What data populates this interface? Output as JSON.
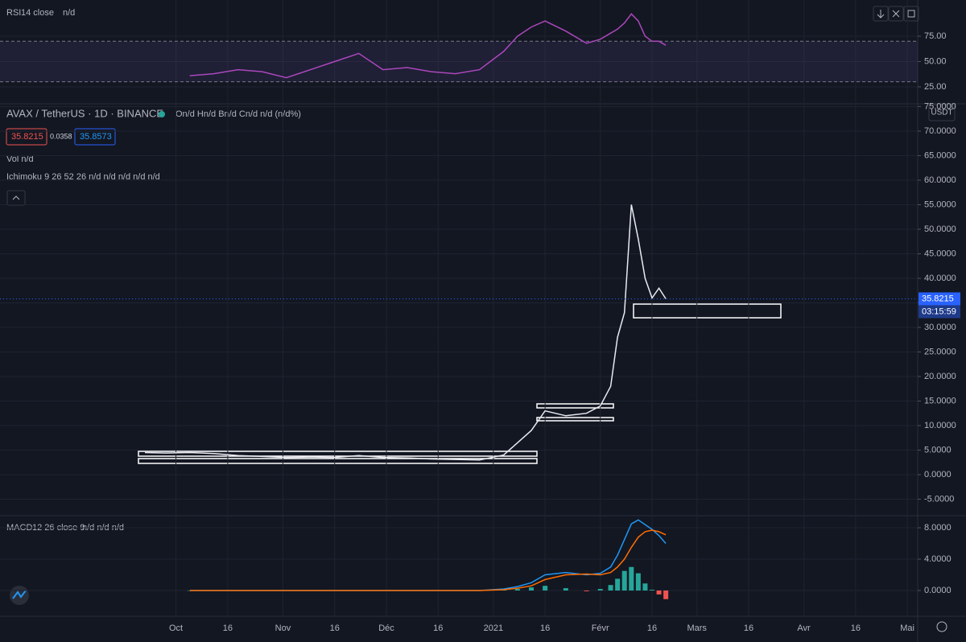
{
  "chart_data": [
    {
      "type": "line",
      "title": "RSI",
      "params": "14 close",
      "status": "n/d",
      "x": [
        "2020-09-22",
        "2020-09-28",
        "2020-10-05",
        "2020-10-12",
        "2020-10-19",
        "2020-10-26",
        "2020-11-02",
        "2020-11-09",
        "2020-11-16",
        "2020-11-23",
        "2020-11-30",
        "2020-12-07",
        "2020-12-14",
        "2020-12-21",
        "2020-12-28",
        "2021-01-04",
        "2021-01-08",
        "2021-01-12",
        "2021-01-16",
        "2021-01-22",
        "2021-01-28",
        "2021-02-01",
        "2021-02-04",
        "2021-02-06",
        "2021-02-08",
        "2021-02-10",
        "2021-02-12",
        "2021-02-14",
        "2021-02-16",
        "2021-02-18",
        "2021-02-20"
      ],
      "series": [
        {
          "color": "#ab47bc",
          "values": [
            null,
            null,
            36,
            38,
            42,
            40,
            34,
            42,
            50,
            58,
            42,
            44,
            40,
            38,
            42,
            60,
            75,
            84,
            90,
            80,
            68,
            72,
            78,
            82,
            88,
            97,
            90,
            75,
            70,
            70,
            66
          ]
        }
      ],
      "band": [
        30,
        70
      ],
      "band_color": "#7e57c2",
      "ylim": [
        9.1,
        110.7
      ],
      "yticks": [
        {
          "value": 25,
          "label": "25.00"
        },
        {
          "value": 50,
          "label": "50.00"
        },
        {
          "value": 75,
          "label": "75.00"
        }
      ]
    },
    {
      "type": "line",
      "title": "AVAX / TetherUS · 1D · BINANCE",
      "ohlc": "On/d Hn/d Bn/d Cn/d n/d (n/d%)",
      "bid": "35.8215",
      "spread": "0.0358",
      "ask": "35.8573",
      "volume_legend": "Vol  n/d",
      "ichimoku_legend": "Ichimoku 9 26 52 26  n/d n/d n/d n/d n/d",
      "currency": "USDT",
      "countdown": "03:15:59",
      "x": [
        "2020-09-22",
        "2020-09-28",
        "2020-10-05",
        "2020-10-12",
        "2020-10-19",
        "2020-10-26",
        "2020-11-02",
        "2020-11-09",
        "2020-11-16",
        "2020-11-23",
        "2020-11-30",
        "2020-12-07",
        "2020-12-14",
        "2020-12-21",
        "2020-12-28",
        "2021-01-04",
        "2021-01-08",
        "2021-01-12",
        "2021-01-16",
        "2021-01-22",
        "2021-01-28",
        "2021-02-01",
        "2021-02-04",
        "2021-02-06",
        "2021-02-08",
        "2021-02-10",
        "2021-02-12",
        "2021-02-14",
        "2021-02-16",
        "2021-02-18",
        "2021-02-20"
      ],
      "series": [
        {
          "color": "#e8eaf0",
          "values": [
            4.5,
            4.4,
            4.5,
            4.3,
            3.9,
            3.7,
            3.5,
            3.6,
            3.5,
            3.9,
            3.5,
            3.4,
            3.2,
            3.1,
            3.0,
            4.0,
            6.5,
            9.0,
            13.0,
            12.0,
            12.5,
            14.0,
            18.0,
            28.0,
            33.0,
            55.0,
            48.0,
            40.0,
            36.0,
            38.0,
            35.8215
          ]
        }
      ],
      "ylim": [
        -8.2,
        75.4
      ],
      "yticks": [
        {
          "value": -5,
          "label": "-5.0000"
        },
        {
          "value": 0,
          "label": "0.0000"
        },
        {
          "value": 5,
          "label": "5.0000"
        },
        {
          "value": 10,
          "label": "10.0000"
        },
        {
          "value": 15,
          "label": "15.0000"
        },
        {
          "value": 20,
          "label": "20.0000"
        },
        {
          "value": 25,
          "label": "25.0000"
        },
        {
          "value": 30,
          "label": "30.0000"
        },
        {
          "value": 35,
          "label": "35.0000"
        },
        {
          "value": 40,
          "label": "40.0000"
        },
        {
          "value": 45,
          "label": "45.0000"
        },
        {
          "value": 50,
          "label": "50.0000"
        },
        {
          "value": 55,
          "label": "55.0000"
        },
        {
          "value": 60,
          "label": "60.0000"
        },
        {
          "value": 65,
          "label": "65.0000"
        },
        {
          "value": 70,
          "label": "70.0000"
        },
        {
          "value": 75,
          "label": "75.0000"
        }
      ]
    },
    {
      "type": "line",
      "title": "MACD",
      "params": "12 26 close 9",
      "status": "n/d n/d n/d",
      "x": [
        "2020-09-22",
        "2020-09-28",
        "2020-10-05",
        "2020-10-12",
        "2020-10-19",
        "2020-10-26",
        "2020-11-02",
        "2020-11-09",
        "2020-11-16",
        "2020-11-23",
        "2020-11-30",
        "2020-12-07",
        "2020-12-14",
        "2020-12-21",
        "2020-12-28",
        "2021-01-04",
        "2021-01-08",
        "2021-01-12",
        "2021-01-16",
        "2021-01-22",
        "2021-01-28",
        "2021-02-01",
        "2021-02-04",
        "2021-02-06",
        "2021-02-08",
        "2021-02-10",
        "2021-02-12",
        "2021-02-14",
        "2021-02-16",
        "2021-02-18",
        "2021-02-20"
      ],
      "series": [
        {
          "color": "#26a69a",
          "negative_color": "#ef5350",
          "style": "histogram",
          "values": [
            null,
            null,
            0,
            0,
            0,
            0,
            0,
            0,
            0,
            0,
            0,
            0,
            0,
            0,
            0,
            0.1,
            0.2,
            0.4,
            0.6,
            0.3,
            -0.1,
            0.2,
            0.7,
            1.5,
            2.5,
            3.0,
            2.2,
            0.9,
            0.1,
            -0.5,
            -1.1
          ]
        },
        {
          "color": "#2196f3",
          "values": [
            null,
            null,
            0,
            0,
            0,
            0,
            0,
            0,
            0,
            0,
            0,
            0,
            0,
            0,
            0,
            0.2,
            0.5,
            1.0,
            2.0,
            2.3,
            2.0,
            2.2,
            3.0,
            4.5,
            6.5,
            8.5,
            9.0,
            8.4,
            7.8,
            7.0,
            6.0
          ]
        },
        {
          "color": "#ff6d00",
          "values": [
            null,
            null,
            0,
            0,
            0,
            0,
            0,
            0,
            0,
            0,
            0,
            0,
            0,
            0,
            0,
            0.1,
            0.3,
            0.6,
            1.4,
            2.0,
            2.1,
            2.0,
            2.3,
            3.0,
            4.0,
            5.5,
            6.8,
            7.5,
            7.7,
            7.5,
            7.1
          ]
        }
      ],
      "ylim": [
        -3.18,
        9.44
      ],
      "yticks": [
        {
          "value": 0,
          "label": "0.0000"
        },
        {
          "value": 4,
          "label": "4.0000"
        },
        {
          "value": 8,
          "label": "8.0000"
        }
      ],
      "xlim": [
        "2020-08-11",
        "2021-05-04"
      ],
      "xticks": [
        {
          "value": "2020-10-01",
          "label": "Oct"
        },
        {
          "value": "2020-10-16",
          "label": "16"
        },
        {
          "value": "2020-11-01",
          "label": "Nov"
        },
        {
          "value": "2020-11-16",
          "label": "16"
        },
        {
          "value": "2020-12-01",
          "label": "Déc"
        },
        {
          "value": "2020-12-16",
          "label": "16"
        },
        {
          "value": "2021-01-01",
          "label": "2021"
        },
        {
          "value": "2021-01-16",
          "label": "16"
        },
        {
          "value": "2021-02-01",
          "label": "Févr"
        },
        {
          "value": "2021-02-16",
          "label": "16"
        },
        {
          "value": "2021-03-01",
          "label": "Mars"
        },
        {
          "value": "2021-03-16",
          "label": "16"
        },
        {
          "value": "2021-04-01",
          "label": "Avr"
        },
        {
          "value": "2021-04-16",
          "label": "16"
        },
        {
          "value": "2021-05-01",
          "label": "Mai"
        }
      ]
    }
  ]
}
